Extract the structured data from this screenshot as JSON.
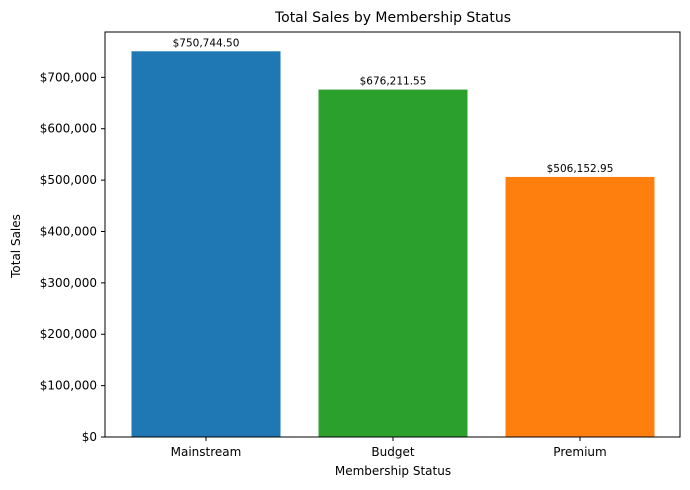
{
  "chart_data": {
    "type": "bar",
    "title": "Total Sales by Membership Status",
    "xlabel": "Membership Status",
    "ylabel": "Total Sales",
    "categories": [
      "Mainstream",
      "Budget",
      "Premium"
    ],
    "values": [
      750744.5,
      676211.55,
      506152.95
    ],
    "value_labels": [
      "$750,744.50",
      "$676,211.55",
      "$506,152.95"
    ],
    "colors": [
      "#1f77b4",
      "#2ca02c",
      "#ff7f0e"
    ],
    "ylim": [
      0,
      788281.725
    ],
    "yticks": [
      0,
      100000,
      200000,
      300000,
      400000,
      500000,
      600000,
      700000
    ],
    "ytick_labels": [
      "$0",
      "$100,000",
      "$200,000",
      "$300,000",
      "$400,000",
      "$500,000",
      "$600,000",
      "$700,000"
    ],
    "grid": false,
    "legend": "none"
  }
}
